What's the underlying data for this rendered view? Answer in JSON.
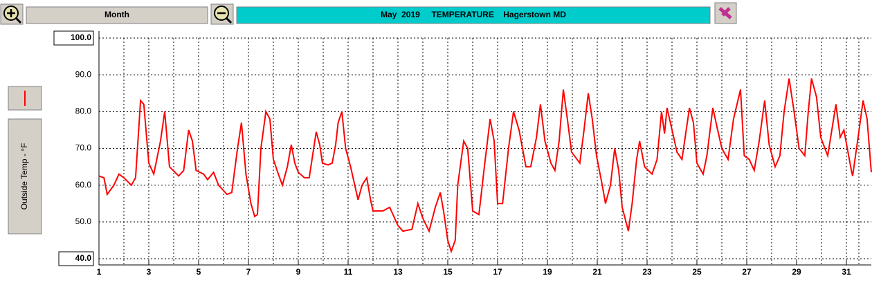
{
  "toolbar": {
    "period": "Month"
  },
  "chart_data": {
    "type": "line",
    "title": "May  2019     TEMPERATURE    Hagerstown MD",
    "y_label": "Outside Temp - °F",
    "xlim": [
      1,
      32
    ],
    "xticks": [
      1,
      3,
      5,
      7,
      9,
      11,
      13,
      15,
      17,
      19,
      21,
      23,
      25,
      27,
      29,
      31
    ],
    "ylim": [
      40,
      100
    ],
    "yticks": [
      {
        "value": 40,
        "label": "40.0"
      },
      {
        "value": 50,
        "label": "50.0"
      },
      {
        "value": 60,
        "label": "60.0"
      },
      {
        "value": 70,
        "label": "70.0"
      },
      {
        "value": 80,
        "label": "80.0"
      },
      {
        "value": 90,
        "label": "90.0"
      },
      {
        "value": 100,
        "label": "100.0"
      }
    ],
    "grid": true,
    "series": [
      {
        "color": "#ff0000",
        "x": [
          1,
          1.2,
          1.33,
          1.6,
          1.8,
          2,
          2.3,
          2.47,
          2.67,
          2.8,
          3,
          3.2,
          3.47,
          3.64,
          3.83,
          4.2,
          4.4,
          4.6,
          4.75,
          4.9,
          5.2,
          5.36,
          5.6,
          5.8,
          6.14,
          6.33,
          6.56,
          6.72,
          6.9,
          7.1,
          7.25,
          7.36,
          7.5,
          7.7,
          7.86,
          8,
          8.2,
          8.36,
          8.56,
          8.72,
          8.86,
          9,
          9.25,
          9.44,
          9.72,
          9.86,
          9.97,
          10.2,
          10.36,
          10.5,
          10.6,
          10.75,
          10.9,
          11.1,
          11.4,
          11.56,
          11.75,
          11.9,
          12,
          12.4,
          12.67,
          13,
          13.2,
          13.56,
          13.8,
          14,
          14.25,
          14.5,
          14.7,
          14.83,
          15,
          15.14,
          15.3,
          15.4,
          15.64,
          15.8,
          16,
          16.25,
          16.47,
          16.7,
          16.86,
          17,
          17.2,
          17.44,
          17.64,
          17.86,
          18.14,
          18.33,
          18.56,
          18.72,
          18.9,
          19.14,
          19.3,
          19.47,
          19.64,
          19.8,
          19.97,
          20.3,
          20.47,
          20.64,
          20.8,
          20.97,
          21.2,
          21.33,
          21.53,
          21.7,
          21.86,
          22,
          22.25,
          22.4,
          22.58,
          22.7,
          22.9,
          23.2,
          23.4,
          23.58,
          23.7,
          23.8,
          23.97,
          24.2,
          24.4,
          24.7,
          24.86,
          25,
          25.25,
          25.4,
          25.64,
          25.8,
          26,
          26.25,
          26.47,
          26.75,
          26.9,
          27.1,
          27.3,
          27.5,
          27.72,
          27.9,
          28.14,
          28.33,
          28.5,
          28.7,
          28.9,
          29.1,
          29.33,
          29.47,
          29.6,
          29.8,
          29.97,
          30.25,
          30.58,
          30.75,
          30.9,
          31.2,
          31.25,
          31.47,
          31.67,
          31.83,
          32
        ],
        "values": [
          62.5,
          62,
          57.5,
          60,
          63,
          62,
          60,
          62,
          83,
          82,
          66,
          63,
          72,
          80,
          65,
          62.5,
          64,
          75,
          72,
          64,
          63,
          61.5,
          63.5,
          60,
          57.5,
          58,
          70,
          77,
          63,
          55,
          51.5,
          52,
          70,
          80,
          78,
          67,
          63,
          60,
          65,
          71,
          66,
          63.5,
          62,
          62,
          74.5,
          71,
          66,
          65.5,
          66,
          71,
          77,
          80,
          70,
          65,
          56,
          60,
          62,
          56,
          53,
          53,
          54,
          49,
          47.5,
          48,
          55,
          51,
          47.5,
          54,
          58,
          53,
          45,
          42,
          45,
          60,
          72,
          70,
          53,
          52,
          65,
          78,
          72,
          55,
          55,
          70,
          80,
          75,
          65,
          65,
          73,
          82,
          72,
          66,
          64,
          72,
          86,
          78,
          69,
          66,
          75,
          85,
          78,
          68,
          60,
          55,
          60,
          70,
          64,
          54,
          47.5,
          55,
          67,
          72,
          65,
          63,
          67,
          80,
          74,
          81,
          76,
          69,
          67,
          81,
          77,
          66,
          63,
          68,
          81,
          76,
          70,
          67,
          78,
          86,
          68,
          67,
          64,
          72,
          83,
          71,
          65,
          68,
          80,
          89,
          80,
          70,
          68,
          80,
          89,
          84,
          73,
          68,
          82,
          73,
          75,
          64,
          62.5,
          73,
          83,
          78,
          63.5
        ]
      }
    ]
  }
}
